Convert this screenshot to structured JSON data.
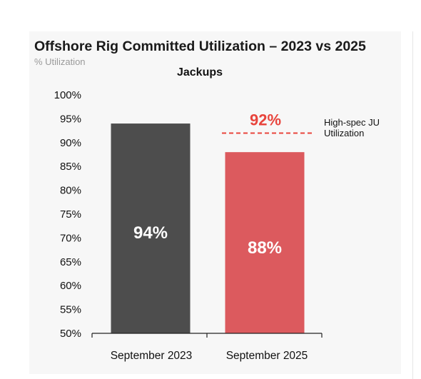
{
  "chart_data": {
    "type": "bar",
    "title": "Offshore Rig Committed Utilization – 2023 vs 2025",
    "subtitle": "% Utilization",
    "panel_title": "Jackups",
    "categories": [
      "September 2023",
      "September 2025"
    ],
    "values": [
      94,
      88
    ],
    "value_labels": [
      "94%",
      "88%"
    ],
    "colors": [
      "#4d4d4d",
      "#dc5a5e"
    ],
    "ylim": [
      50,
      100
    ],
    "yticks": [
      "50%",
      "55%",
      "60%",
      "65%",
      "70%",
      "75%",
      "80%",
      "85%",
      "90%",
      "95%",
      "100%"
    ],
    "grid": false,
    "reference_line": {
      "value": 92,
      "value_label": "92%",
      "label_lines": [
        "High-spec JU",
        "Utilization"
      ],
      "color": "#e8443c",
      "style": "dashed",
      "category": "September 2025"
    }
  }
}
